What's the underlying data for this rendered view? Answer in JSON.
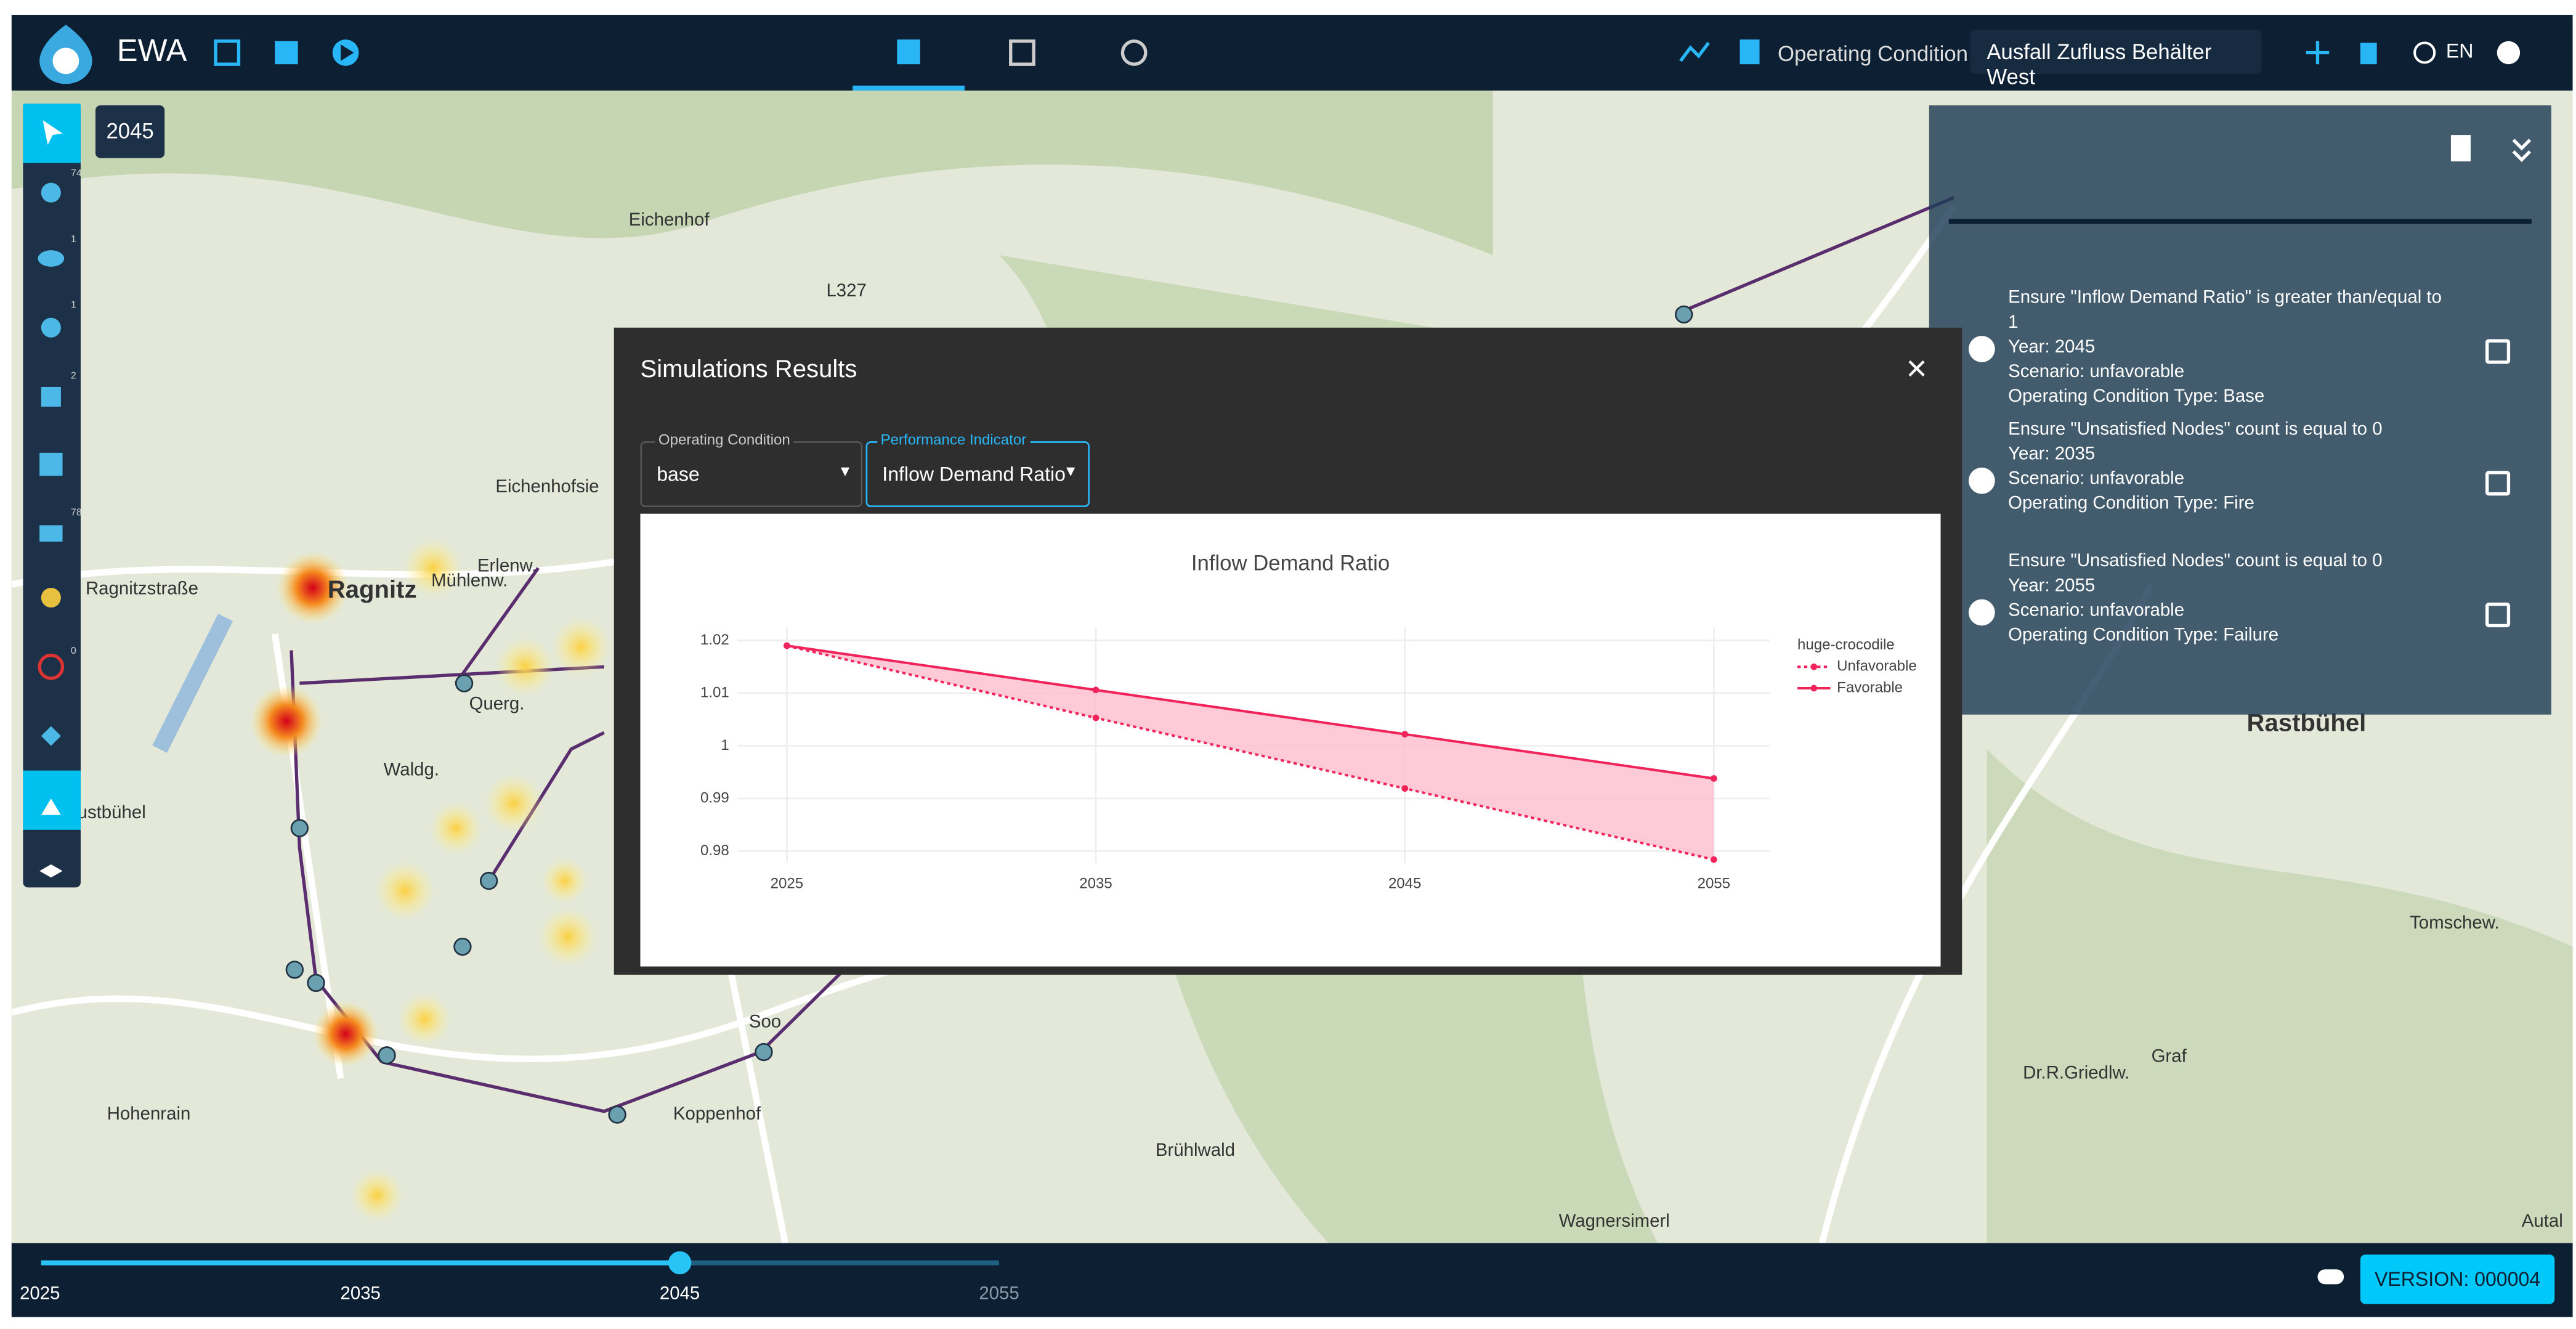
{
  "header": {
    "app_name": "EWA",
    "operating_condition_label": "Operating Condition",
    "operating_condition_value": "Ausfall Zufluss Behälter West",
    "language": "EN"
  },
  "toolbar": {
    "year_badge": "2045",
    "counts": [
      "74",
      "1",
      "1",
      "2",
      "78",
      "0"
    ]
  },
  "map_labels": [
    "Eichenhof",
    "Ragnitz",
    "Erlenw.",
    "Eichenhofsie",
    "Ragnitzstraße",
    "Mühlenw.",
    "Querg.",
    "Waldg.",
    "ustbühel",
    "Hohenrain",
    "Koppenhof",
    "Brühlwald",
    "Wagnersimerl",
    "Rastbühel",
    "Graf",
    "Dr.R.Griedlw.",
    "Soo",
    "Tomschew.",
    "Autal",
    "L327",
    "Koppenhof"
  ],
  "panel": {
    "items": [
      {
        "lines": [
          "Ensure \"Inflow Demand Ratio\" is greater than/equal to 1",
          "Year: 2045",
          "Scenario: unfavorable",
          "Operating Condition Type: Base"
        ]
      },
      {
        "lines": [
          "Ensure \"Unsatisfied Nodes\" count is equal to 0",
          "Year: 2035",
          "Scenario: unfavorable",
          "Operating Condition Type: Fire"
        ]
      },
      {
        "lines": [
          "Ensure \"Unsatisfied Nodes\" count is equal to 0",
          "Year: 2055",
          "Scenario: unfavorable",
          "Operating Condition Type: Failure"
        ]
      }
    ]
  },
  "dialog": {
    "title": "Simulations Results",
    "close": "×",
    "field1_label": "Operating Condition",
    "field1_value": "base",
    "field2_label": "Performance Indicator",
    "field2_value": "Inflow Demand Ratio"
  },
  "chart_data": {
    "type": "line",
    "title": "Inflow Demand Ratio",
    "legend_title": "huge-crocodile",
    "x": [
      2025,
      2035,
      2045,
      2055
    ],
    "series": [
      {
        "name": "Unfavorable",
        "color": "#f0245a",
        "dash": "dot",
        "values": [
          1.019,
          1.0053,
          0.9919,
          0.9784
        ]
      },
      {
        "name": "Favorable",
        "color": "#f0245a",
        "dash": "solid",
        "values": [
          1.019,
          1.0106,
          1.0022,
          0.9938
        ]
      }
    ],
    "fill_between": "#ffb8ca",
    "xlim": [
      2023.4,
      2056.8
    ],
    "ylim": [
      0.9778,
      1.0225
    ],
    "xticks": [
      2025,
      2035,
      2045,
      2055
    ],
    "yticks": [
      0.98,
      0.99,
      1,
      1.01,
      1.02
    ],
    "grid": true
  },
  "timeline": {
    "ticks": [
      2025,
      2035,
      2045,
      2055
    ],
    "value": 2045
  },
  "version": "VERSION: 000004"
}
